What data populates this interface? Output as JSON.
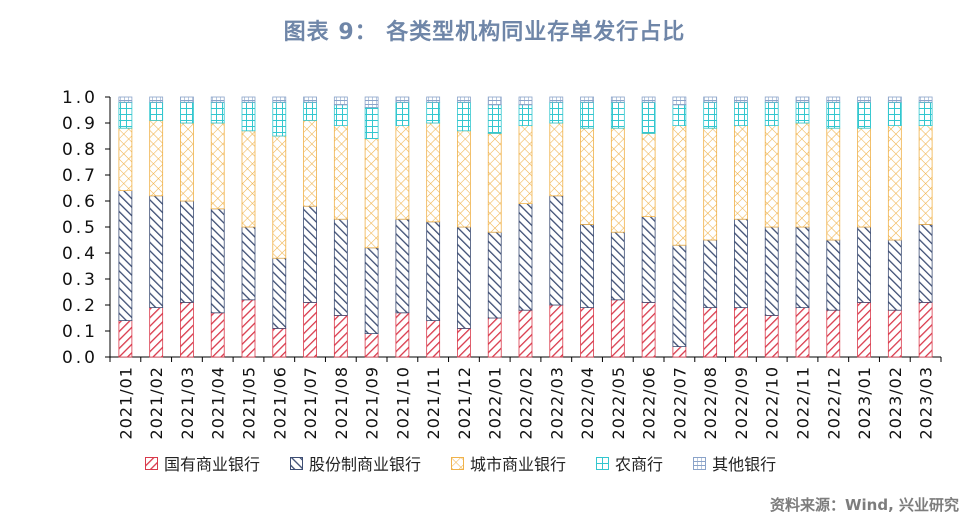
{
  "title": "图表 9： 各类型机构同业存单发行占比",
  "source": "资料来源：Wind, 兴业研究",
  "chart_data": {
    "type": "bar",
    "stacked": true,
    "categories": [
      "2021/01",
      "2021/02",
      "2021/03",
      "2021/04",
      "2021/05",
      "2021/06",
      "2021/07",
      "2021/08",
      "2021/09",
      "2021/10",
      "2021/11",
      "2021/12",
      "2022/01",
      "2022/02",
      "2022/03",
      "2022/04",
      "2022/05",
      "2022/06",
      "2022/07",
      "2022/08",
      "2022/09",
      "2022/10",
      "2022/11",
      "2022/12",
      "2023/01",
      "2023/02",
      "2023/03"
    ],
    "series": [
      {
        "name": "国有商业银行",
        "color": "#d9394b",
        "pattern": "hatch-right",
        "values": [
          0.14,
          0.19,
          0.21,
          0.17,
          0.22,
          0.11,
          0.21,
          0.16,
          0.09,
          0.17,
          0.14,
          0.11,
          0.15,
          0.18,
          0.2,
          0.19,
          0.22,
          0.21,
          0.04,
          0.19,
          0.19,
          0.16,
          0.19,
          0.18,
          0.21,
          0.18,
          0.21
        ]
      },
      {
        "name": "股份制商业银行",
        "color": "#3d4d73",
        "pattern": "hatch-left",
        "values": [
          0.5,
          0.43,
          0.39,
          0.4,
          0.28,
          0.27,
          0.37,
          0.37,
          0.33,
          0.36,
          0.38,
          0.39,
          0.33,
          0.41,
          0.42,
          0.32,
          0.26,
          0.33,
          0.39,
          0.26,
          0.34,
          0.34,
          0.31,
          0.27,
          0.29,
          0.27,
          0.3
        ]
      },
      {
        "name": "城市商业银行",
        "color": "#f0b24a",
        "pattern": "cross",
        "values": [
          0.24,
          0.29,
          0.3,
          0.33,
          0.37,
          0.47,
          0.33,
          0.36,
          0.42,
          0.36,
          0.38,
          0.37,
          0.38,
          0.3,
          0.28,
          0.37,
          0.4,
          0.32,
          0.46,
          0.43,
          0.36,
          0.39,
          0.4,
          0.43,
          0.38,
          0.44,
          0.38
        ]
      },
      {
        "name": "农商行",
        "color": "#33c7cf",
        "pattern": "grid",
        "values": [
          0.1,
          0.07,
          0.08,
          0.08,
          0.11,
          0.13,
          0.07,
          0.08,
          0.12,
          0.09,
          0.08,
          0.11,
          0.11,
          0.08,
          0.08,
          0.1,
          0.1,
          0.12,
          0.08,
          0.1,
          0.09,
          0.09,
          0.08,
          0.1,
          0.1,
          0.09,
          0.09
        ]
      },
      {
        "name": "其他银行",
        "color": "#8aa3c9",
        "pattern": "lines",
        "values": [
          0.02,
          0.02,
          0.02,
          0.02,
          0.02,
          0.02,
          0.02,
          0.03,
          0.04,
          0.02,
          0.02,
          0.02,
          0.03,
          0.03,
          0.02,
          0.02,
          0.02,
          0.02,
          0.03,
          0.02,
          0.02,
          0.02,
          0.02,
          0.02,
          0.02,
          0.02,
          0.02
        ]
      }
    ],
    "ylim": [
      0,
      1
    ],
    "yticks": [
      "0.0",
      "0.1",
      "0.2",
      "0.3",
      "0.4",
      "0.5",
      "0.6",
      "0.7",
      "0.8",
      "0.9",
      "1.0"
    ],
    "legend_position": "bottom",
    "grid": false
  }
}
